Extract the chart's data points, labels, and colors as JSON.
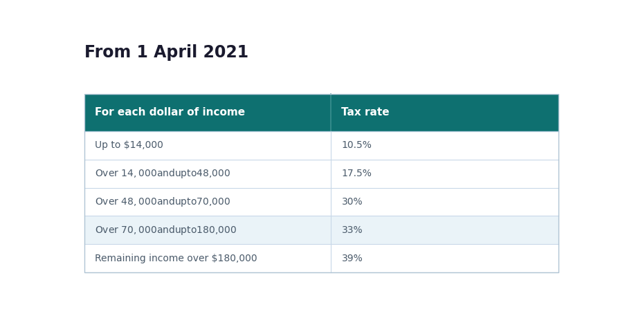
{
  "title": "From 1 April 2021",
  "title_fontsize": 17,
  "title_color": "#1a1a2e",
  "title_fontweight": "bold",
  "header_bg_color": "#0e7070",
  "header_text_color": "#ffffff",
  "header_col1": "For each dollar of income",
  "header_col2": "Tax rate",
  "header_fontsize": 11,
  "col1_split": 0.52,
  "rows": [
    {
      "income": "Up to $14,000",
      "rate": "10.5%",
      "bg": "#ffffff"
    },
    {
      "income": "Over $14,000 and up to $48,000",
      "rate": "17.5%",
      "bg": "#ffffff"
    },
    {
      "income": "Over $48,000 and up to $70,000",
      "rate": "30%",
      "bg": "#ffffff"
    },
    {
      "income": "Over $70,000 and up to $180,000",
      "rate": "33%",
      "bg": "#eaf3f8"
    },
    {
      "income": "Remaining income over $180,000",
      "rate": "39%",
      "bg": "#ffffff"
    }
  ],
  "row_fontsize": 10,
  "row_text_color": "#4a5a6a",
  "divider_color": "#c8d8e8",
  "table_border_color": "#b0c4d4",
  "bg_color": "#ffffff"
}
